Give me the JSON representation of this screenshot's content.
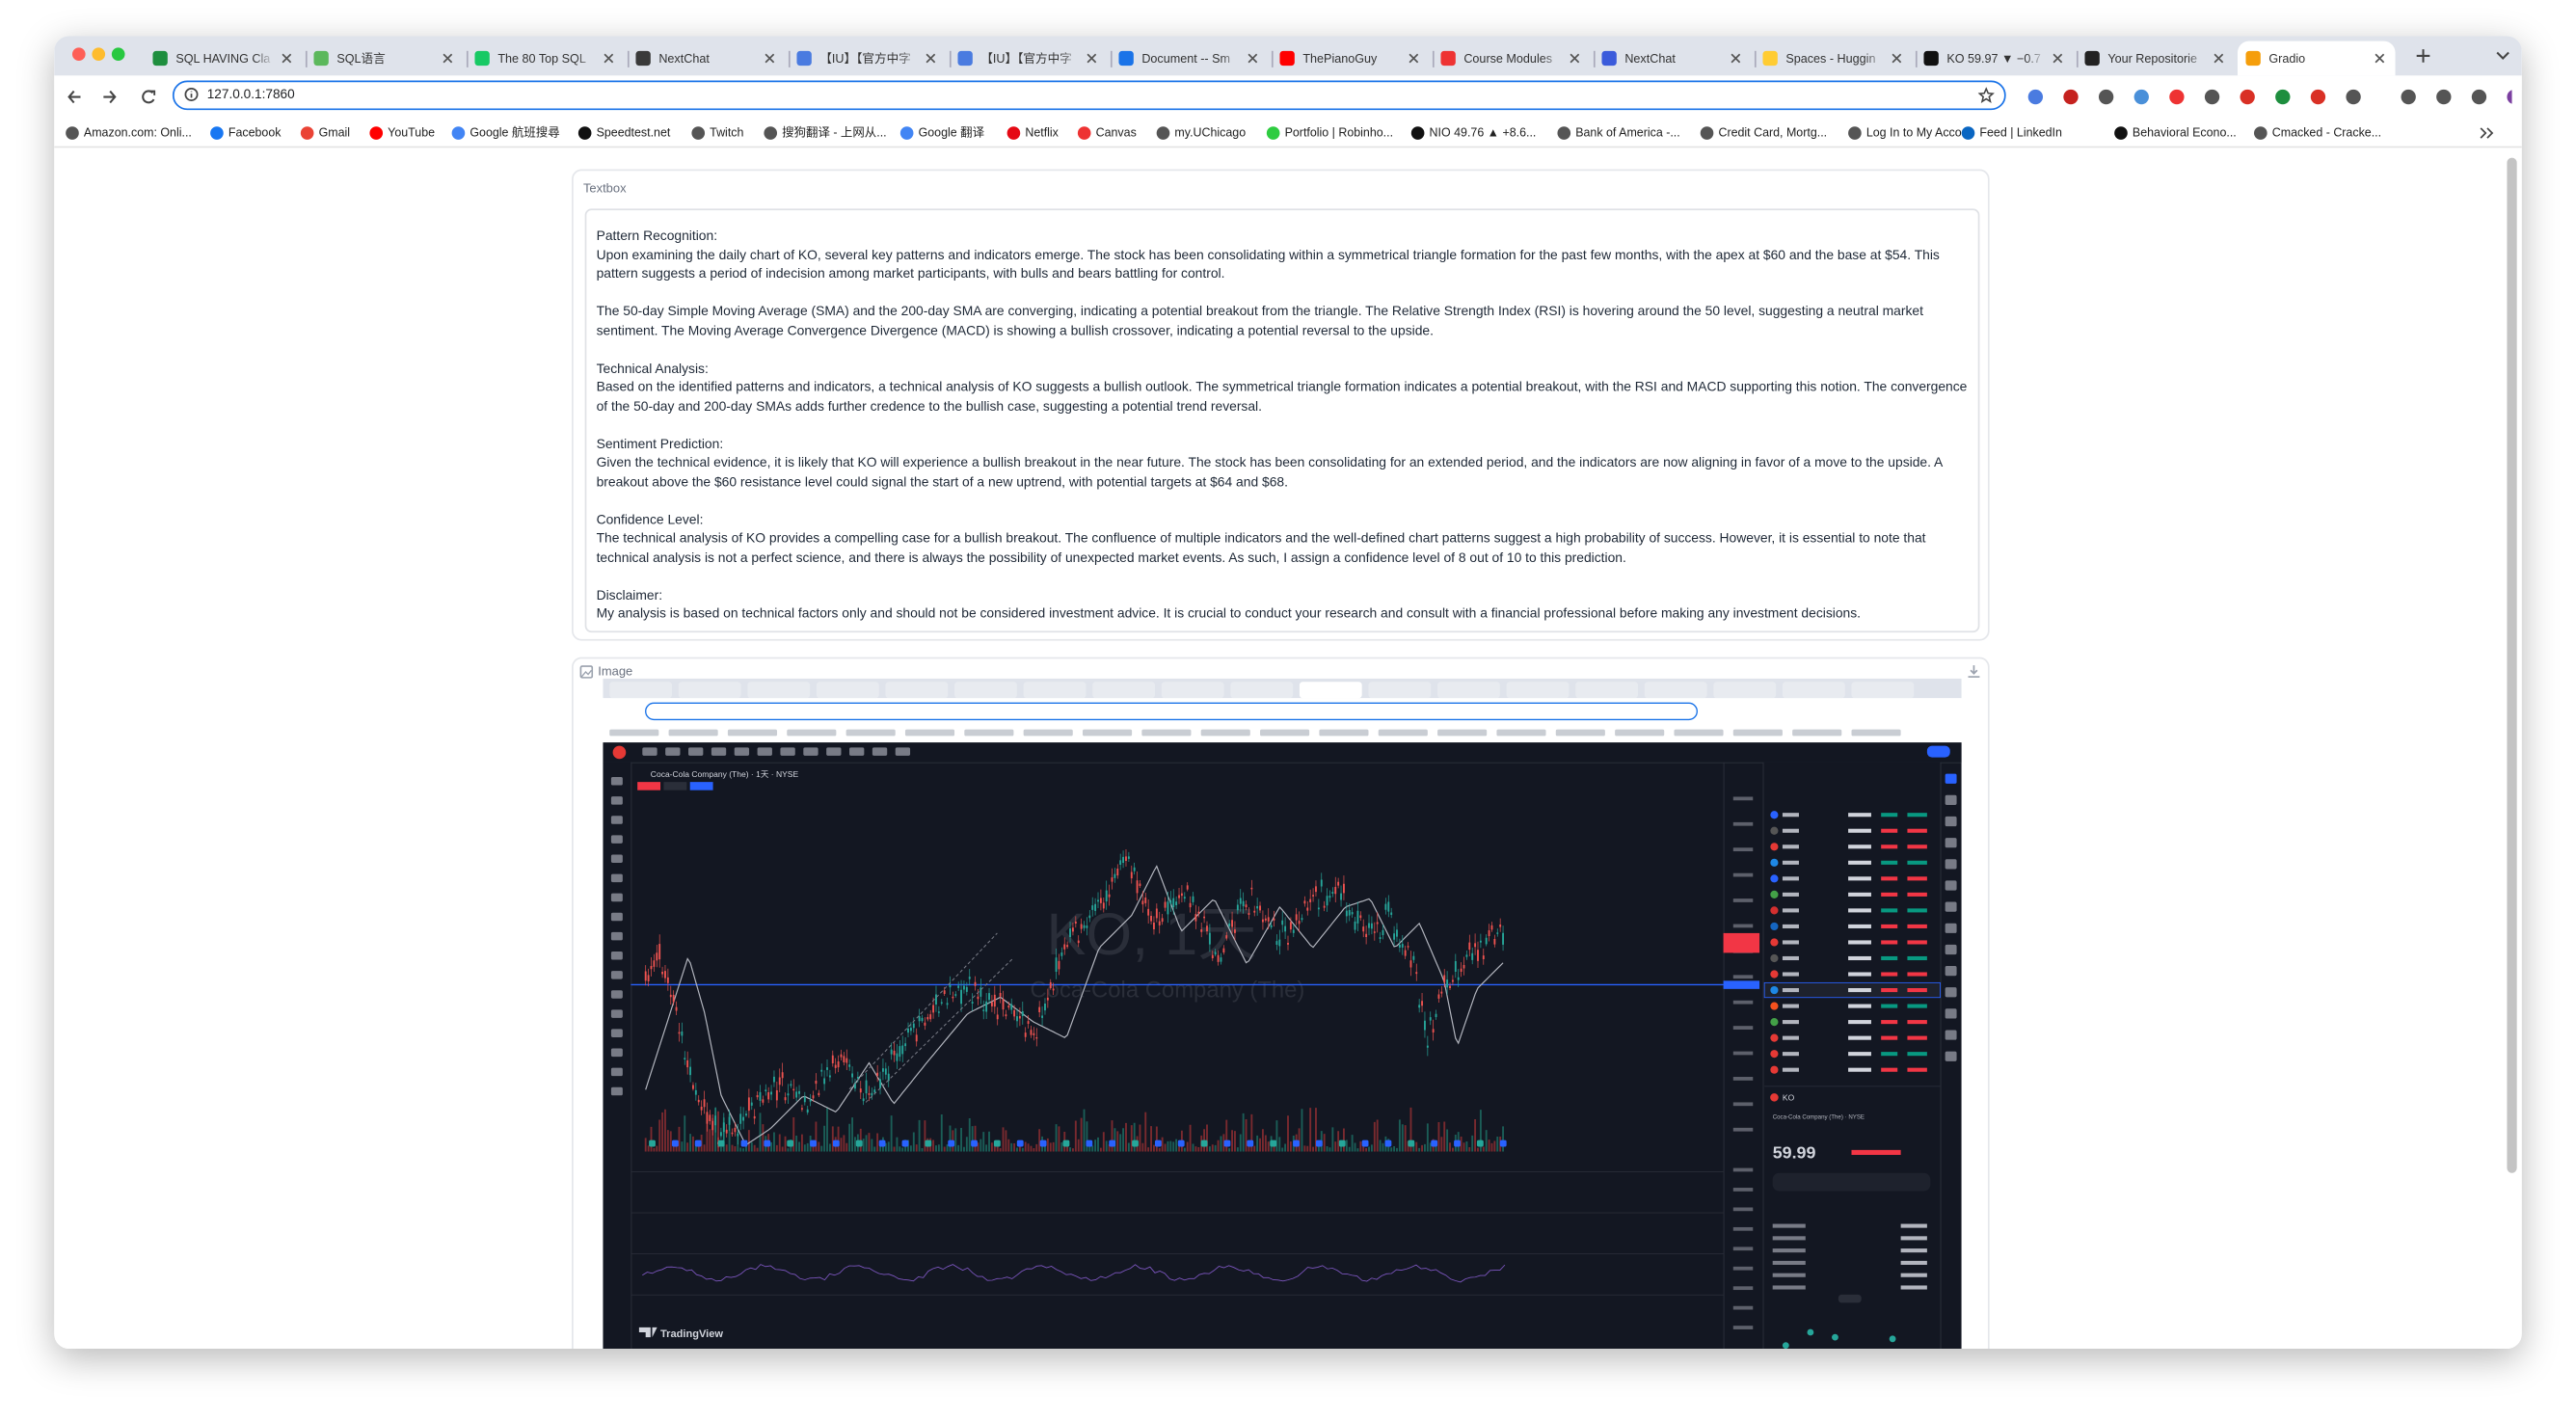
{
  "browser": {
    "tabs": [
      "SQL HAVING Cla",
      "SQL语言",
      "The 80 Top SQL",
      "NextChat",
      "【IU】【官方中字",
      "【IU】【官方中字",
      "Document -- Sm",
      "ThePianoGuy",
      "Course Modules",
      "NextChat",
      "Spaces - Huggin",
      "KO 59.97 ▼ −0.7",
      "Your Repositorie",
      "Gradio"
    ],
    "address": "127.0.0.1:7860",
    "bookmarks": [
      "Amazon.com: Onli...",
      "Facebook",
      "Gmail",
      "YouTube",
      "Google 航班搜尋",
      "Speedtest.net",
      "Twitch",
      "搜狗翻译 - 上网从...",
      "Google 翻译",
      "Netflix",
      "Canvas",
      "my.UChicago",
      "Portfolio | Robinho...",
      "NIO 49.76 ▲ +8.6...",
      "Bank of America -...",
      "Credit Card, Mortg...",
      "Log In to My Acco...",
      "Feed | LinkedIn",
      "Behavioral Econo...",
      "Cmacked - Cracke..."
    ]
  },
  "textbox": {
    "label": "Textbox",
    "sections": [
      {
        "heading": "Pattern Recognition:",
        "paragraphs": [
          "Upon examining the daily chart of KO, several key patterns and indicators emerge. The stock has been consolidating within a symmetrical triangle formation for the past few months, with the apex at $60 and the base at $54. This pattern suggests a period of indecision among market participants, with bulls and bears battling for control.",
          "The 50-day Simple Moving Average (SMA) and the 200-day SMA are converging, indicating a potential breakout from the triangle. The Relative Strength Index (RSI) is hovering around the 50 level, suggesting a neutral market sentiment. The Moving Average Convergence Divergence (MACD) is showing a bullish crossover, indicating a potential reversal to the upside."
        ]
      },
      {
        "heading": "Technical Analysis:",
        "paragraphs": [
          "Based on the identified patterns and indicators, a technical analysis of KO suggests a bullish outlook. The symmetrical triangle formation indicates a potential breakout, with the RSI and MACD supporting this notion. The convergence of the 50-day and 200-day SMAs adds further credence to the bullish case, suggesting a potential trend reversal."
        ]
      },
      {
        "heading": "Sentiment Prediction:",
        "paragraphs": [
          "Given the technical evidence, it is likely that KO will experience a bullish breakout in the near future. The stock has been consolidating for an extended period, and the indicators are now aligning in favor of a move to the upside. A breakout above the $60 resistance level could signal the start of a new uptrend, with potential targets at $64 and $68."
        ]
      },
      {
        "heading": "Confidence Level:",
        "paragraphs": [
          "The technical analysis of KO provides a compelling case for a bullish breakout. The confluence of multiple indicators and the well-defined chart patterns suggest a high probability of success. However, it is essential to note that technical analysis is not a perfect science, and there is always the possibility of unexpected market events. As such, I assign a confidence level of 8 out of 10 to this prediction."
        ]
      },
      {
        "heading": "Disclaimer:",
        "paragraphs": [
          "My analysis is based on technical factors only and should not be considered investment advice. It is crucial to conduct your research and consult with a financial professional before making any investment decisions."
        ]
      }
    ]
  },
  "image": {
    "label": "Image",
    "screenshot": {
      "chart_title": "Coca-Cola Company (The) · 1天 · NYSE",
      "watermark": "KO, 1天",
      "watermark_sub": "Coca-Cola Company (The)",
      "symbol": "KO",
      "panel_name": "Coca-Cola Company (The) · NYSE",
      "price": "59.99",
      "brand": "TradingView"
    }
  }
}
